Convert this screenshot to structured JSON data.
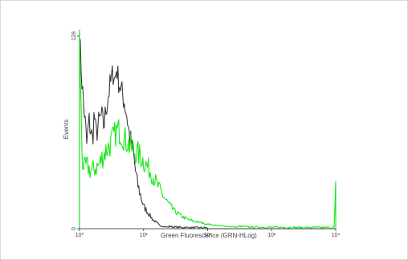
{
  "chart_data": {
    "type": "line",
    "title": "",
    "xlabel": "Green Fluorescence (GRN-HLog)",
    "ylabel": "Events",
    "x_scale": "log",
    "xlim": [
      1,
      10000
    ],
    "ylim": [
      0,
      128
    ],
    "x_ticks": [
      {
        "value": 1,
        "label": "10⁰"
      },
      {
        "value": 10,
        "label": "10¹"
      },
      {
        "value": 100,
        "label": "10²"
      },
      {
        "value": 1000,
        "label": "10³"
      },
      {
        "value": 10000,
        "label": "10⁴"
      }
    ],
    "y_ticks": [
      {
        "value": 0,
        "label": "0"
      },
      {
        "value": 128,
        "label": "128"
      }
    ],
    "grid": false,
    "legend": "none",
    "series": [
      {
        "color": "#3a3a3a",
        "x": [
          1.0,
          1.1,
          1.2,
          1.3,
          1.4,
          1.5,
          1.6,
          1.7,
          1.8,
          2.0,
          2.2,
          2.4,
          2.6,
          2.8,
          3.0,
          3.2,
          3.4,
          3.6,
          3.8,
          4.0,
          4.3,
          4.6,
          5.0,
          5.5,
          6.0,
          6.5,
          7.0,
          7.5,
          8.0,
          9.0,
          10,
          12,
          14,
          16,
          18,
          20,
          25,
          30,
          40,
          60,
          100,
          200,
          1000,
          10000
        ],
        "values": [
          128,
          95,
          75,
          55,
          72,
          65,
          58,
          78,
          62,
          70,
          75,
          68,
          80,
          88,
          95,
          100,
          105,
          98,
          108,
          100,
          95,
          90,
          85,
          75,
          62,
          55,
          48,
          38,
          30,
          22,
          15,
          10,
          6,
          4,
          2,
          1.5,
          1,
          0.5,
          0.3,
          0.1,
          0,
          0,
          0,
          0
        ]
      },
      {
        "color": "#19e619",
        "x": [
          1.0,
          1.1,
          1.2,
          1.3,
          1.5,
          1.7,
          2.0,
          2.3,
          2.6,
          3.0,
          3.5,
          4.0,
          4.5,
          5.0,
          5.5,
          6.0,
          7.0,
          8.0,
          9.0,
          10,
          12,
          14,
          16,
          18,
          20,
          25,
          30,
          40,
          50,
          60,
          80,
          100,
          150,
          200,
          300,
          500,
          1000,
          3000,
          9500,
          10000
        ],
        "values": [
          128,
          45,
          40,
          42,
          38,
          40,
          42,
          48,
          52,
          56,
          62,
          66,
          63,
          60,
          58,
          55,
          52,
          50,
          48,
          45,
          40,
          35,
          30,
          26,
          22,
          16,
          12,
          8,
          6,
          5,
          4,
          3,
          2,
          1.5,
          1,
          0.5,
          0.3,
          0.2,
          0.2,
          28
        ]
      }
    ]
  }
}
